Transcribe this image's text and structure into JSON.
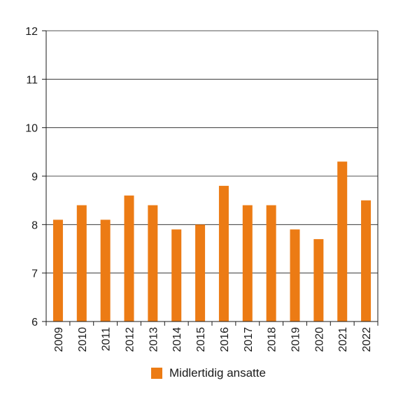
{
  "chart_data": {
    "type": "bar",
    "categories": [
      "2009",
      "2010",
      "2011",
      "2012",
      "2013",
      "2014",
      "2015",
      "2016",
      "2017",
      "2018",
      "2019",
      "2020",
      "2021",
      "2022"
    ],
    "series": [
      {
        "name": "Midlertidig ansatte",
        "values": [
          8.1,
          8.4,
          8.1,
          8.6,
          8.4,
          7.9,
          8.0,
          8.8,
          8.4,
          8.4,
          7.9,
          7.7,
          9.3,
          8.5
        ]
      }
    ],
    "ylim": [
      6,
      12
    ],
    "yticks": [
      6,
      7,
      8,
      9,
      10,
      11,
      12
    ],
    "ytick_labels": [
      "6",
      "7",
      "8",
      "9",
      "10",
      "11",
      "12"
    ],
    "grid": true,
    "legend": "bottom-center",
    "bar_color": "#ec7b14",
    "title": "",
    "xlabel": "",
    "ylabel": ""
  }
}
